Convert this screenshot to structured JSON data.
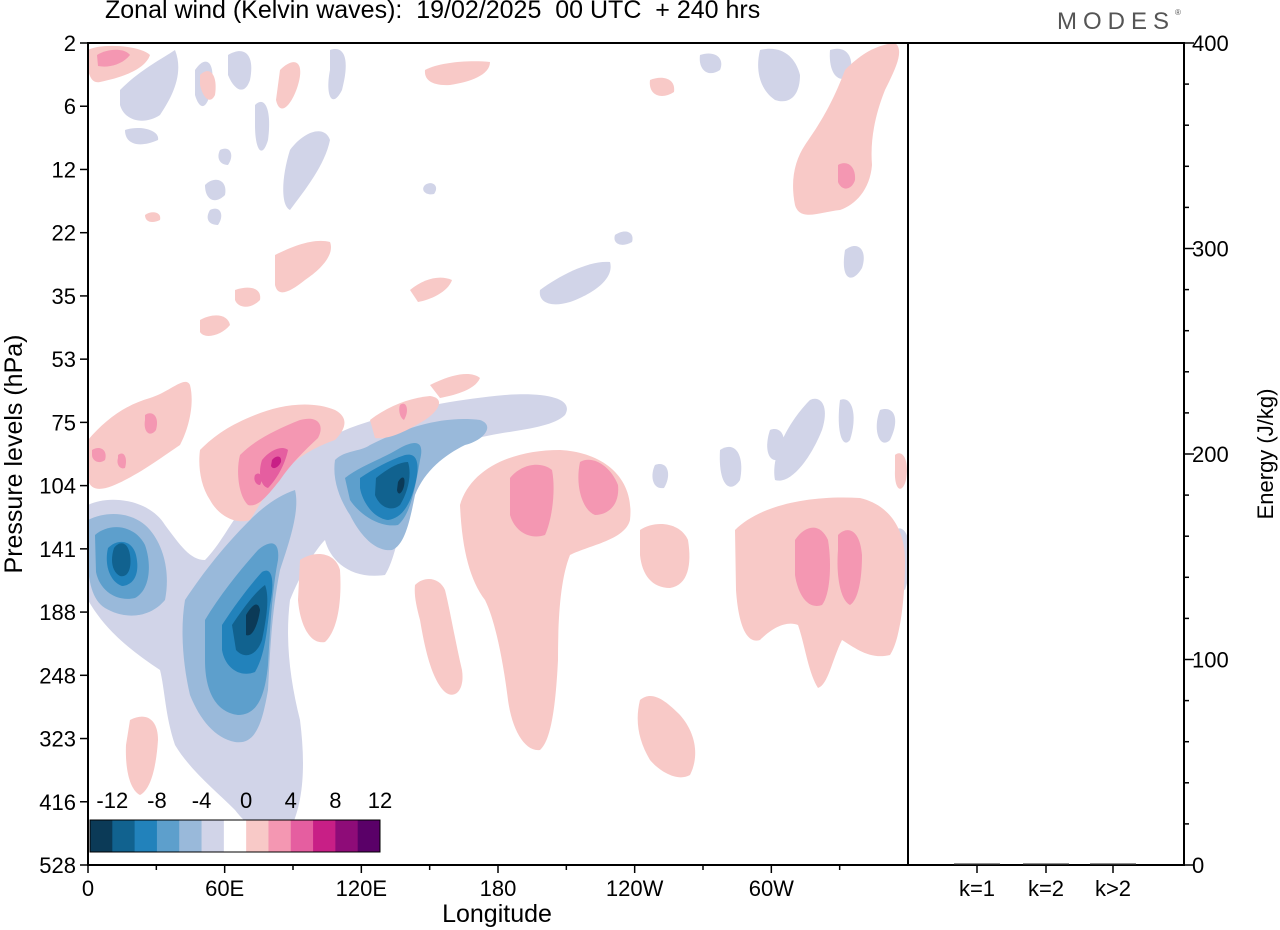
{
  "header": {
    "title": "Zonal wind (Kelvin waves):  19/02/2025  00 UTC  + 240 hrs",
    "brand": "MODES",
    "brand_mark": "®"
  },
  "chart_data": [
    {
      "type": "heatmap",
      "title": "Zonal wind (Kelvin waves):  19/02/2025  00 UTC  + 240 hrs",
      "xlabel": "Longitude",
      "ylabel": "Pressure levels (hPa)",
      "x_ticks": [
        "0",
        "60E",
        "120E",
        "180",
        "120W",
        "60W"
      ],
      "y_ticks": [
        "2",
        "6",
        "12",
        "22",
        "35",
        "53",
        "75",
        "104",
        "141",
        "188",
        "248",
        "323",
        "416",
        "528"
      ],
      "colorbar": {
        "labels": [
          "-12",
          "-8",
          "-4",
          "0",
          "4",
          "8",
          "12"
        ],
        "levels": [
          -14,
          -12,
          -10,
          -8,
          -6,
          -4,
          -2,
          2,
          4,
          6,
          8,
          10,
          12,
          14
        ],
        "colors": [
          "#0b3a57",
          "#11628f",
          "#2282bb",
          "#5d9fcc",
          "#99b9da",
          "#d1d4e8",
          "#ffffff",
          "#f8c9c7",
          "#f497b2",
          "#e55ea0",
          "#c81f86",
          "#8e0c78",
          "#5a0068"
        ]
      },
      "features": [
        {
          "sign": "negative",
          "min": -14,
          "lon": 75,
          "level": 188
        },
        {
          "sign": "negative",
          "min": -14,
          "lon": 131,
          "level": 104
        },
        {
          "sign": "negative",
          "min": -10,
          "lon": 14,
          "level": 141
        },
        {
          "sign": "positive",
          "max": 8,
          "lon": 80,
          "level": 104
        },
        {
          "sign": "positive",
          "max": 6,
          "lon": 195,
          "level": 104
        },
        {
          "sign": "positive",
          "max": 6,
          "lon": 312,
          "level": 141
        },
        {
          "sign": "positive",
          "max": 6,
          "lon": 330,
          "level": 12
        }
      ]
    },
    {
      "type": "bar",
      "categories": [
        "k=1",
        "k=2",
        "k>2"
      ],
      "values": [
        0.3,
        0.2,
        0.4
      ],
      "ylabel": "Energy (J/kg)",
      "ylim": [
        0,
        400
      ],
      "y_ticks": [
        "0",
        "100",
        "200",
        "300",
        "400"
      ]
    }
  ]
}
